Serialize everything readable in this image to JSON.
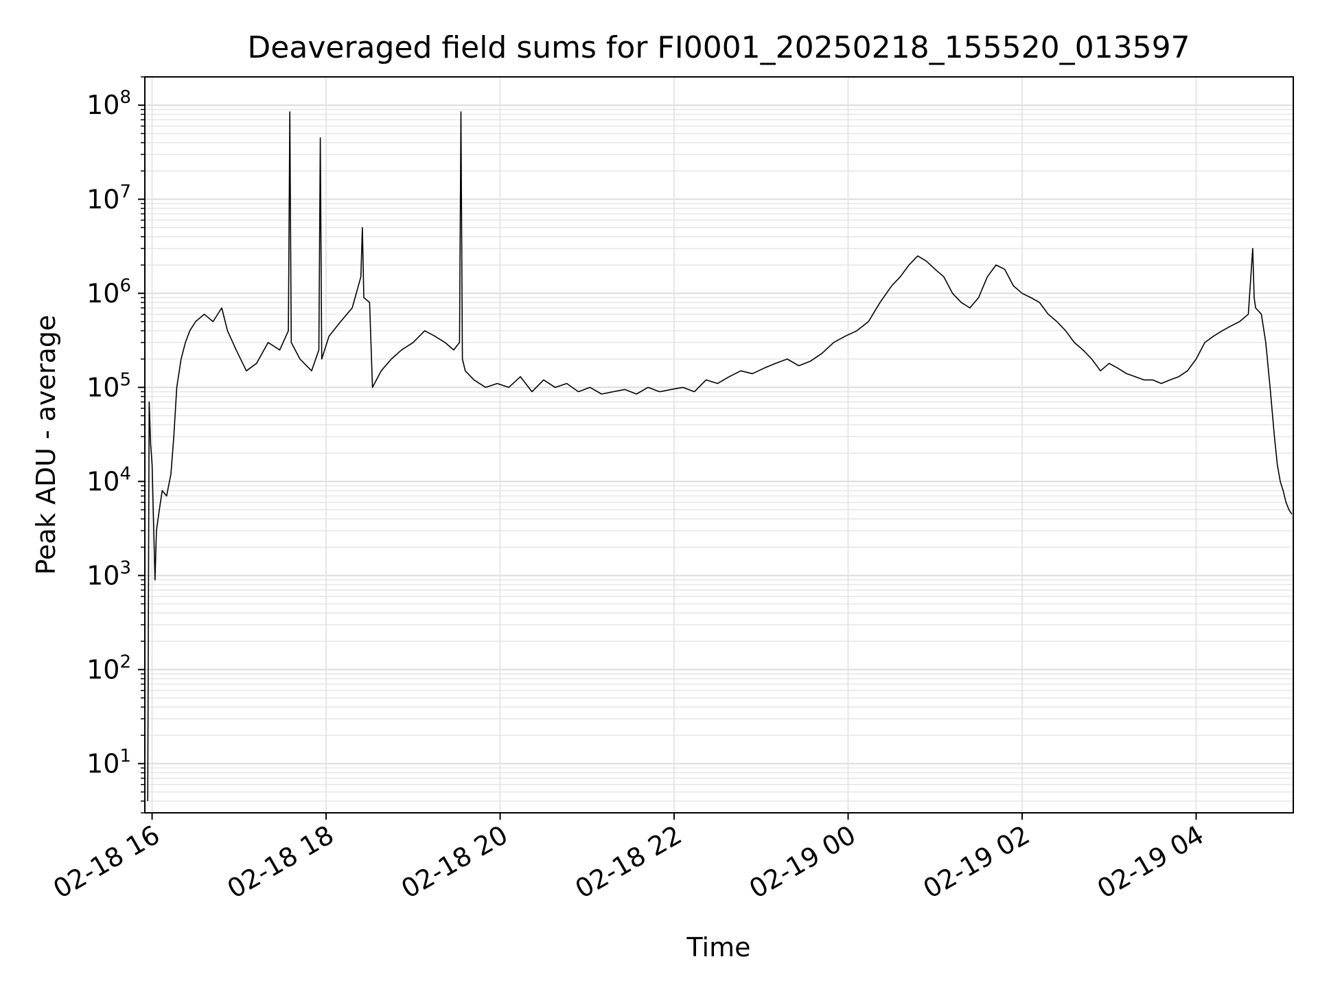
{
  "chart_data": {
    "type": "line",
    "title": "Deaveraged field sums for FI0001_20250218_155520_013597",
    "xlabel": "Time",
    "ylabel": "Peak ADU - average",
    "yscale": "log",
    "ylim": [
      3,
      200000000
    ],
    "xlim": [
      "2025-02-18 15:55",
      "2025-02-19 05:07"
    ],
    "grid": true,
    "legend": "none",
    "x_ticks": [
      {
        "value": "2025-02-18 16:00",
        "label": "02-18 16"
      },
      {
        "value": "2025-02-18 18:00",
        "label": "02-18 18"
      },
      {
        "value": "2025-02-18 20:00",
        "label": "02-18 20"
      },
      {
        "value": "2025-02-18 22:00",
        "label": "02-18 22"
      },
      {
        "value": "2025-02-19 00:00",
        "label": "02-19 00"
      },
      {
        "value": "2025-02-19 02:00",
        "label": "02-19 02"
      },
      {
        "value": "2025-02-19 04:00",
        "label": "02-19 04"
      }
    ],
    "y_ticks": [
      {
        "value": 10,
        "base": "10",
        "exp": "1"
      },
      {
        "value": 100,
        "base": "10",
        "exp": "2"
      },
      {
        "value": 1000,
        "base": "10",
        "exp": "3"
      },
      {
        "value": 10000,
        "base": "10",
        "exp": "4"
      },
      {
        "value": 100000,
        "base": "10",
        "exp": "5"
      },
      {
        "value": 1000000,
        "base": "10",
        "exp": "6"
      },
      {
        "value": 10000000,
        "base": "10",
        "exp": "7"
      },
      {
        "value": 100000000,
        "base": "10",
        "exp": "8"
      }
    ],
    "series": [
      {
        "color": "#000000",
        "x": [
          "2025-02-18 15:57",
          "2025-02-18 15:58",
          "2025-02-18 15:59",
          "2025-02-18 16:00",
          "2025-02-18 16:02",
          "2025-02-18 16:03",
          "2025-02-18 16:05",
          "2025-02-18 16:07",
          "2025-02-18 16:10",
          "2025-02-18 16:13",
          "2025-02-18 16:15",
          "2025-02-18 16:17",
          "2025-02-18 16:20",
          "2025-02-18 16:23",
          "2025-02-18 16:26",
          "2025-02-18 16:30",
          "2025-02-18 16:36",
          "2025-02-18 16:42",
          "2025-02-18 16:48",
          "2025-02-18 16:52",
          "2025-02-18 16:58",
          "2025-02-18 17:05",
          "2025-02-18 17:12",
          "2025-02-18 17:20",
          "2025-02-18 17:28",
          "2025-02-18 17:34",
          "2025-02-18 17:35",
          "2025-02-18 17:36",
          "2025-02-18 17:42",
          "2025-02-18 17:50",
          "2025-02-18 17:55",
          "2025-02-18 17:56",
          "2025-02-18 17:57",
          "2025-02-18 18:02",
          "2025-02-18 18:10",
          "2025-02-18 18:18",
          "2025-02-18 18:24",
          "2025-02-18 18:25",
          "2025-02-18 18:26",
          "2025-02-18 18:30",
          "2025-02-18 18:32",
          "2025-02-18 18:38",
          "2025-02-18 18:45",
          "2025-02-18 18:52",
          "2025-02-18 19:00",
          "2025-02-18 19:08",
          "2025-02-18 19:15",
          "2025-02-18 19:22",
          "2025-02-18 19:28",
          "2025-02-18 19:32",
          "2025-02-18 19:33",
          "2025-02-18 19:34",
          "2025-02-18 19:36",
          "2025-02-18 19:42",
          "2025-02-18 19:50",
          "2025-02-18 19:58",
          "2025-02-18 20:06",
          "2025-02-18 20:14",
          "2025-02-18 20:22",
          "2025-02-18 20:30",
          "2025-02-18 20:38",
          "2025-02-18 20:46",
          "2025-02-18 20:54",
          "2025-02-18 21:02",
          "2025-02-18 21:10",
          "2025-02-18 21:18",
          "2025-02-18 21:26",
          "2025-02-18 21:34",
          "2025-02-18 21:42",
          "2025-02-18 21:50",
          "2025-02-18 21:58",
          "2025-02-18 22:06",
          "2025-02-18 22:14",
          "2025-02-18 22:22",
          "2025-02-18 22:30",
          "2025-02-18 22:38",
          "2025-02-18 22:46",
          "2025-02-18 22:54",
          "2025-02-18 23:02",
          "2025-02-18 23:10",
          "2025-02-18 23:18",
          "2025-02-18 23:26",
          "2025-02-18 23:34",
          "2025-02-18 23:42",
          "2025-02-18 23:50",
          "2025-02-18 23:58",
          "2025-02-19 00:06",
          "2025-02-19 00:14",
          "2025-02-19 00:22",
          "2025-02-19 00:30",
          "2025-02-19 00:36",
          "2025-02-19 00:42",
          "2025-02-19 00:48",
          "2025-02-19 00:54",
          "2025-02-19 01:00",
          "2025-02-19 01:06",
          "2025-02-19 01:12",
          "2025-02-19 01:18",
          "2025-02-19 01:24",
          "2025-02-19 01:30",
          "2025-02-19 01:36",
          "2025-02-19 01:42",
          "2025-02-19 01:48",
          "2025-02-19 01:54",
          "2025-02-19 02:00",
          "2025-02-19 02:06",
          "2025-02-19 02:12",
          "2025-02-19 02:18",
          "2025-02-19 02:24",
          "2025-02-19 02:30",
          "2025-02-19 02:36",
          "2025-02-19 02:42",
          "2025-02-19 02:48",
          "2025-02-19 02:54",
          "2025-02-19 03:00",
          "2025-02-19 03:06",
          "2025-02-19 03:12",
          "2025-02-19 03:18",
          "2025-02-19 03:24",
          "2025-02-19 03:30",
          "2025-02-19 03:36",
          "2025-02-19 03:42",
          "2025-02-19 03:48",
          "2025-02-19 03:54",
          "2025-02-19 04:00",
          "2025-02-19 04:06",
          "2025-02-19 04:12",
          "2025-02-19 04:18",
          "2025-02-19 04:24",
          "2025-02-19 04:30",
          "2025-02-19 04:36",
          "2025-02-19 04:39",
          "2025-02-19 04:40",
          "2025-02-19 04:41",
          "2025-02-19 04:45",
          "2025-02-19 04:48",
          "2025-02-19 04:51",
          "2025-02-19 04:54",
          "2025-02-19 04:56",
          "2025-02-19 04:58",
          "2025-02-19 05:00",
          "2025-02-19 05:02",
          "2025-02-19 05:04",
          "2025-02-19 05:06"
        ],
        "y": [
          4,
          70000,
          25000,
          15000,
          900,
          3000,
          5000,
          8000,
          7000,
          12000,
          30000,
          100000,
          200000,
          300000,
          400000,
          500000,
          600000,
          500000,
          700000,
          400000,
          250000,
          150000,
          180000,
          300000,
          250000,
          400000,
          85000000,
          300000,
          200000,
          150000,
          250000,
          45000000,
          200000,
          350000,
          500000,
          700000,
          1500000,
          5000000,
          900000,
          800000,
          100000,
          150000,
          200000,
          250000,
          300000,
          400000,
          350000,
          300000,
          250000,
          300000,
          85000000,
          200000,
          150000,
          120000,
          100000,
          110000,
          100000,
          130000,
          90000,
          120000,
          100000,
          110000,
          90000,
          100000,
          85000,
          90000,
          95000,
          85000,
          100000,
          90000,
          95000,
          100000,
          90000,
          120000,
          110000,
          130000,
          150000,
          140000,
          160000,
          180000,
          200000,
          170000,
          190000,
          230000,
          300000,
          350000,
          400000,
          500000,
          800000,
          1200000,
          1500000,
          2000000,
          2500000,
          2200000,
          1800000,
          1500000,
          1000000,
          800000,
          700000,
          900000,
          1500000,
          2000000,
          1800000,
          1200000,
          1000000,
          900000,
          800000,
          600000,
          500000,
          400000,
          300000,
          250000,
          200000,
          150000,
          180000,
          160000,
          140000,
          130000,
          120000,
          120000,
          110000,
          120000,
          130000,
          150000,
          200000,
          300000,
          350000,
          400000,
          450000,
          500000,
          600000,
          3000000,
          900000,
          700000,
          600000,
          300000,
          100000,
          30000,
          15000,
          10000,
          8000,
          6000,
          5000,
          4500
        ]
      }
    ]
  }
}
